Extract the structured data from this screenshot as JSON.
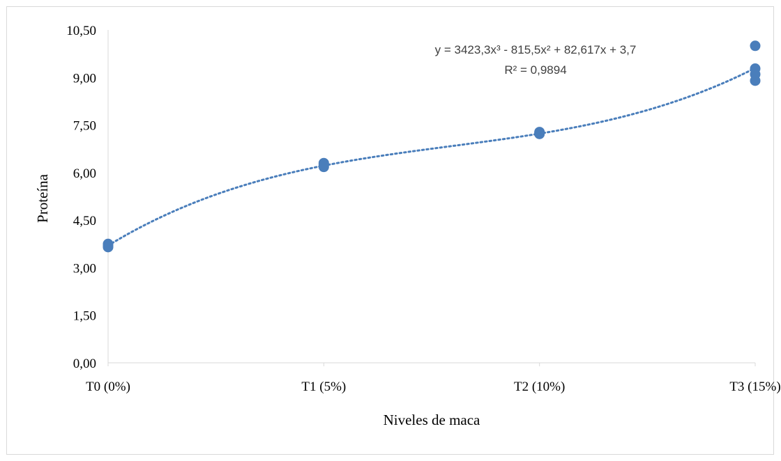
{
  "chart_data": {
    "type": "scatter",
    "xlabel": "Niveles de maca",
    "ylabel": "Proteína",
    "categories": [
      "T0  (0%)",
      "T1 (5%)",
      "T2 (10%)",
      "T3 (15%)"
    ],
    "x_values": [
      0,
      0.05,
      0.1,
      0.15
    ],
    "ylim": [
      0,
      10.5
    ],
    "yticks": [
      "0,00",
      "1,50",
      "3,00",
      "4,50",
      "6,00",
      "7,50",
      "9,00",
      "10,50"
    ],
    "ytick_values": [
      0,
      1.5,
      3,
      4.5,
      6,
      7.5,
      9,
      10.5
    ],
    "grid": false,
    "points": [
      {
        "x": 0,
        "y": 3.75
      },
      {
        "x": 0,
        "y": 3.7
      },
      {
        "x": 0,
        "y": 3.65
      },
      {
        "x": 0.05,
        "y": 6.3
      },
      {
        "x": 0.05,
        "y": 6.25
      },
      {
        "x": 0.05,
        "y": 6.18
      },
      {
        "x": 0.1,
        "y": 7.28
      },
      {
        "x": 0.1,
        "y": 7.25
      },
      {
        "x": 0.1,
        "y": 7.22
      },
      {
        "x": 0.15,
        "y": 10.0
      },
      {
        "x": 0.15,
        "y": 9.28
      },
      {
        "x": 0.15,
        "y": 9.1
      },
      {
        "x": 0.15,
        "y": 8.9
      }
    ],
    "trendline": {
      "type": "polynomial-3",
      "coefficients": [
        3423.3,
        -815.5,
        82.617,
        3.7
      ],
      "equation": "y = 3423,3x³ - 815,5x² + 82,617x + 3,7",
      "r2": "R² = 0,9894",
      "style": "dotted"
    },
    "marker_color": "#4a7ebb",
    "trend_color": "#4a7ebb"
  }
}
